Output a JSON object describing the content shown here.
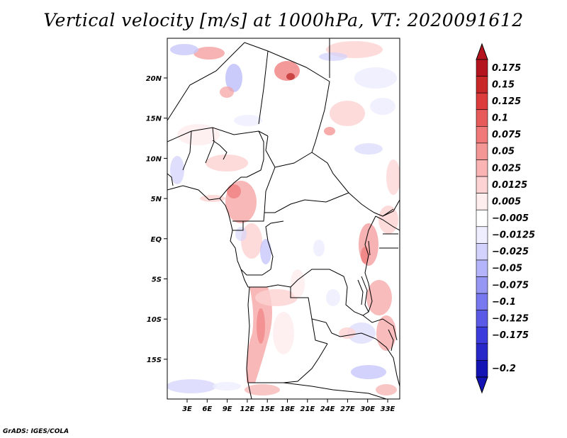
{
  "title": "Vertical velocity [m/s] at 1000hPa, VT: 2020091612",
  "credit": "GrADS: IGES/COLA",
  "lat_labels": [
    "20N",
    "15N",
    "10N",
    "5N",
    "EQ",
    "5S",
    "10S",
    "15S"
  ],
  "lon_labels": [
    "3E",
    "6E",
    "9E",
    "12E",
    "15E",
    "18E",
    "21E",
    "24E",
    "27E",
    "30E",
    "33E"
  ],
  "colorbar": {
    "labels": [
      "0.175",
      "0.15",
      "0.125",
      "0.1",
      "0.075",
      "0.05",
      "0.025",
      "0.0125",
      "0.005",
      "−0.005",
      "−0.0125",
      "−0.025",
      "−0.05",
      "−0.075",
      "−0.1",
      "−0.125",
      "−0.175",
      "−0.2"
    ],
    "colors": [
      "#b4141e",
      "#c82828",
      "#dc3c3c",
      "#e65a5a",
      "#f07878",
      "#f59696",
      "#fab4b4",
      "#fcd2d2",
      "#feeeee",
      "#ffffff",
      "#eeeeff",
      "#d2d2fc",
      "#b4b4fa",
      "#9696f5",
      "#7878f0",
      "#5a5ae6",
      "#3c3cdc",
      "#2828c8",
      "#1414b4"
    ]
  }
}
